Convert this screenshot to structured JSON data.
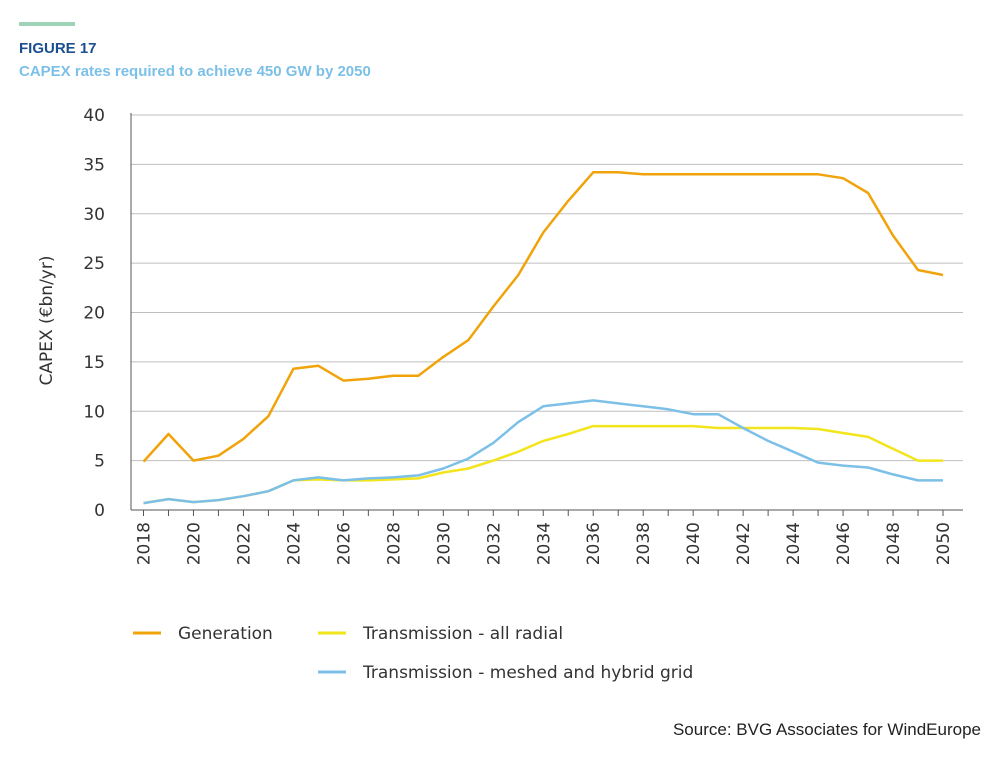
{
  "header": {
    "figure_label": "FIGURE 17",
    "title": "CAPEX rates required to achieve 450 GW by 2050"
  },
  "source": "Source: BVG Associates for WindEurope",
  "colors": {
    "accent_bar": "#9fd3b8",
    "figure_label": "#1b4f8f",
    "title": "#7cc0e8",
    "grid": "#bfbfbf",
    "axis": "#555555"
  },
  "chart_data": {
    "type": "line",
    "title": "",
    "xlabel": "",
    "ylabel": "CAPEX (€bn/yr)",
    "ylim": [
      0,
      40
    ],
    "yticks": [
      0,
      5,
      10,
      15,
      20,
      25,
      30,
      35,
      40
    ],
    "xticks": [
      2018,
      2020,
      2022,
      2024,
      2026,
      2028,
      2030,
      2032,
      2034,
      2036,
      2038,
      2040,
      2042,
      2044,
      2046,
      2048,
      2050
    ],
    "grid": true,
    "legend_position": "bottom",
    "x": [
      2018,
      2019,
      2020,
      2021,
      2022,
      2023,
      2024,
      2025,
      2026,
      2027,
      2028,
      2029,
      2030,
      2031,
      2032,
      2033,
      2034,
      2035,
      2036,
      2037,
      2038,
      2039,
      2040,
      2041,
      2042,
      2043,
      2044,
      2045,
      2046,
      2047,
      2048,
      2049,
      2050
    ],
    "series": [
      {
        "name": "Generation",
        "color": "#f0a30a",
        "values": [
          4.9,
          7.7,
          5.0,
          5.5,
          7.2,
          9.5,
          14.3,
          14.6,
          13.1,
          13.3,
          13.6,
          13.6,
          15.5,
          17.2,
          20.6,
          23.8,
          28.1,
          31.3,
          34.2,
          34.2,
          34.0,
          34.0,
          34.0,
          34.0,
          34.0,
          34.0,
          34.0,
          34.0,
          33.6,
          32.1,
          27.8,
          24.3,
          23.8
        ]
      },
      {
        "name": "Transmission - all radial",
        "color": "#f2e51c",
        "values": [
          0.7,
          1.1,
          0.8,
          1.0,
          1.4,
          1.9,
          3.0,
          3.1,
          3.0,
          3.0,
          3.1,
          3.2,
          3.8,
          4.2,
          5.0,
          5.9,
          7.0,
          7.7,
          8.5,
          8.5,
          8.5,
          8.5,
          8.5,
          8.3,
          8.3,
          8.3,
          8.3,
          8.2,
          7.8,
          7.4,
          6.2,
          5.0,
          5.0
        ]
      },
      {
        "name": "Transmission - meshed and hybrid grid",
        "color": "#7cc0e8",
        "values": [
          0.7,
          1.1,
          0.8,
          1.0,
          1.4,
          1.9,
          3.0,
          3.3,
          3.0,
          3.2,
          3.3,
          3.5,
          4.2,
          5.2,
          6.8,
          8.9,
          10.5,
          10.8,
          11.1,
          10.8,
          10.5,
          10.2,
          9.7,
          9.7,
          8.3,
          7.0,
          5.9,
          4.8,
          4.5,
          4.3,
          3.6,
          3.0,
          3.0
        ]
      }
    ]
  }
}
